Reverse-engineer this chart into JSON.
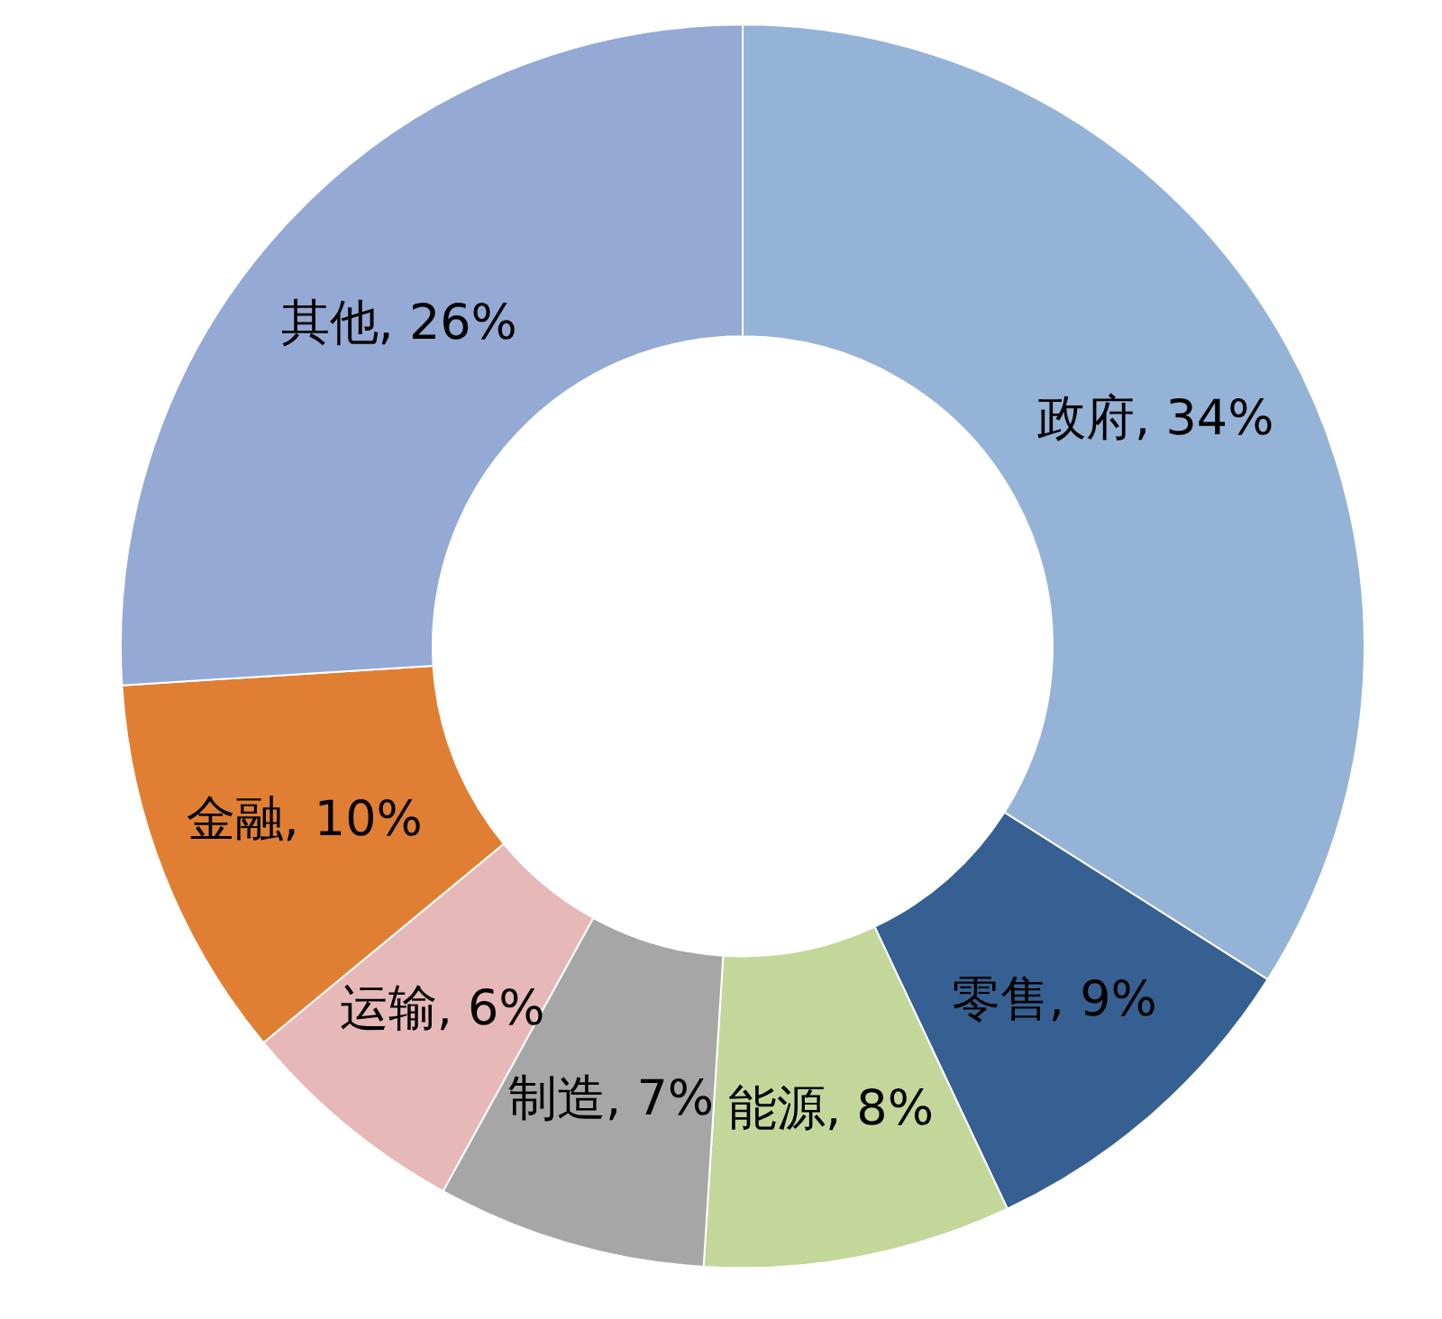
{
  "chart_data": {
    "type": "donut",
    "categories": [
      "政府",
      "零售",
      "能源",
      "制造",
      "运输",
      "金融",
      "其他"
    ],
    "values": [
      34,
      9,
      8,
      7,
      6,
      10,
      26
    ],
    "value_labels": [
      "34%",
      "9%",
      "8%",
      "7%",
      "6%",
      "10%",
      "26%"
    ],
    "colors": [
      "#95b3d7",
      "#366092",
      "#c4d79b",
      "#a6a6a6",
      "#e6b8b7",
      "#e07f33",
      "#94a9d3"
    ],
    "legend": false
  }
}
